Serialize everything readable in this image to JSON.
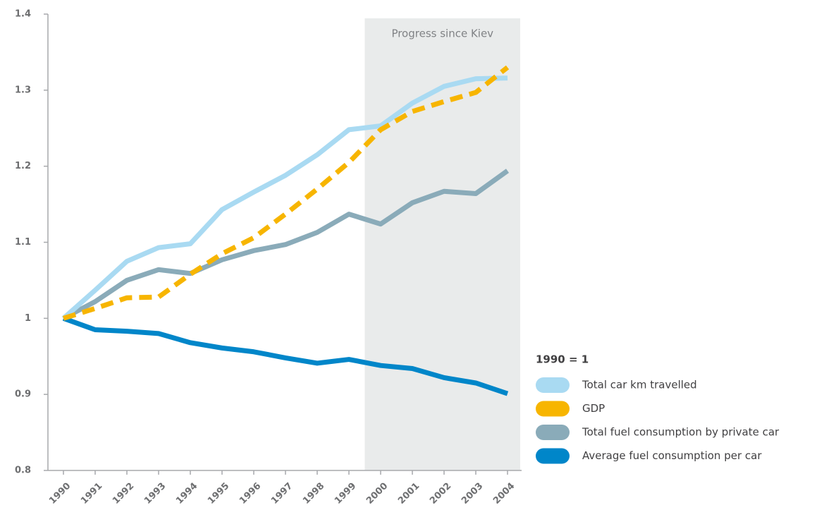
{
  "chart_data": {
    "type": "line",
    "annotation": "Progress since Kiev",
    "legend_title": "1990 = 1",
    "categories": [
      "1990",
      "1991",
      "1992",
      "1993",
      "1994",
      "1995",
      "1996",
      "1997",
      "1998",
      "1999",
      "2000",
      "2001",
      "2002",
      "2003",
      "2004"
    ],
    "series": [
      {
        "name": "Total car km travelled",
        "color": "#a9daf2",
        "dashed": false,
        "values": [
          1.0,
          1.037,
          1.075,
          1.093,
          1.098,
          1.143,
          1.166,
          1.188,
          1.215,
          1.248,
          1.253,
          1.283,
          1.305,
          1.315,
          1.316
        ]
      },
      {
        "name": "GDP",
        "color": "#f7b500",
        "dashed": true,
        "values": [
          1.0,
          1.013,
          1.027,
          1.028,
          1.058,
          1.085,
          1.106,
          1.137,
          1.17,
          1.205,
          1.248,
          1.272,
          1.285,
          1.297,
          1.33
        ]
      },
      {
        "name": "Total fuel consumption by private car",
        "color": "#8aabb9",
        "dashed": false,
        "values": [
          1.0,
          1.022,
          1.05,
          1.064,
          1.059,
          1.077,
          1.089,
          1.097,
          1.113,
          1.137,
          1.124,
          1.152,
          1.167,
          1.164,
          1.194
        ]
      },
      {
        "name": "Average fuel consumption per car",
        "color": "#0086c9",
        "dashed": false,
        "values": [
          1.0,
          0.985,
          0.983,
          0.98,
          0.968,
          0.961,
          0.956,
          0.948,
          0.941,
          0.946,
          0.938,
          0.934,
          0.922,
          0.915,
          0.901
        ]
      }
    ],
    "ylim": [
      0.8,
      1.4
    ],
    "yticks": [
      0.8,
      0.9,
      1,
      1.1,
      1.2,
      1.3,
      1.4
    ],
    "grid": false
  }
}
